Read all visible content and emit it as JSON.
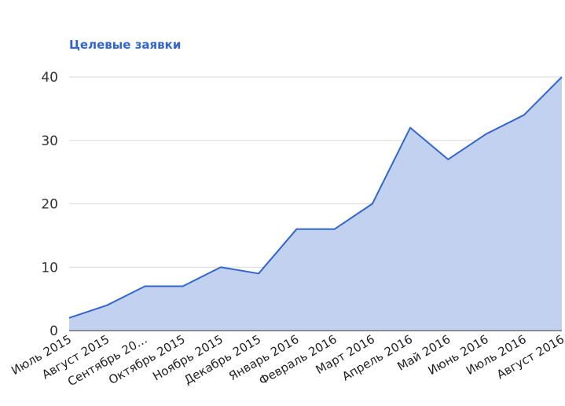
{
  "chart_data": {
    "type": "area",
    "title": "Целевые заявки",
    "categories": [
      "Июль 2015",
      "Август 2015",
      "Сентябрь 20…",
      "Октябрь 2015",
      "Ноябрь 2015",
      "Декабрь 2015",
      "Январь 2016",
      "Февраль 2016",
      "Март 2016",
      "Апрель 2016",
      "Май 2016",
      "Июнь 2016",
      "Июль 2016",
      "Август 2016"
    ],
    "series": [
      {
        "values": [
          2,
          4,
          7,
          7,
          10,
          9,
          16,
          16,
          20,
          32,
          27,
          31,
          34,
          40
        ]
      }
    ],
    "yticks": [
      0,
      10,
      20,
      30,
      40
    ],
    "ylim": [
      0,
      40
    ],
    "grid": true,
    "colors": {
      "title": "#3366cc",
      "line": "#3366cc",
      "fill": "#c2d1f0",
      "grid": "#d9d9d9",
      "axis": "#333333"
    }
  }
}
